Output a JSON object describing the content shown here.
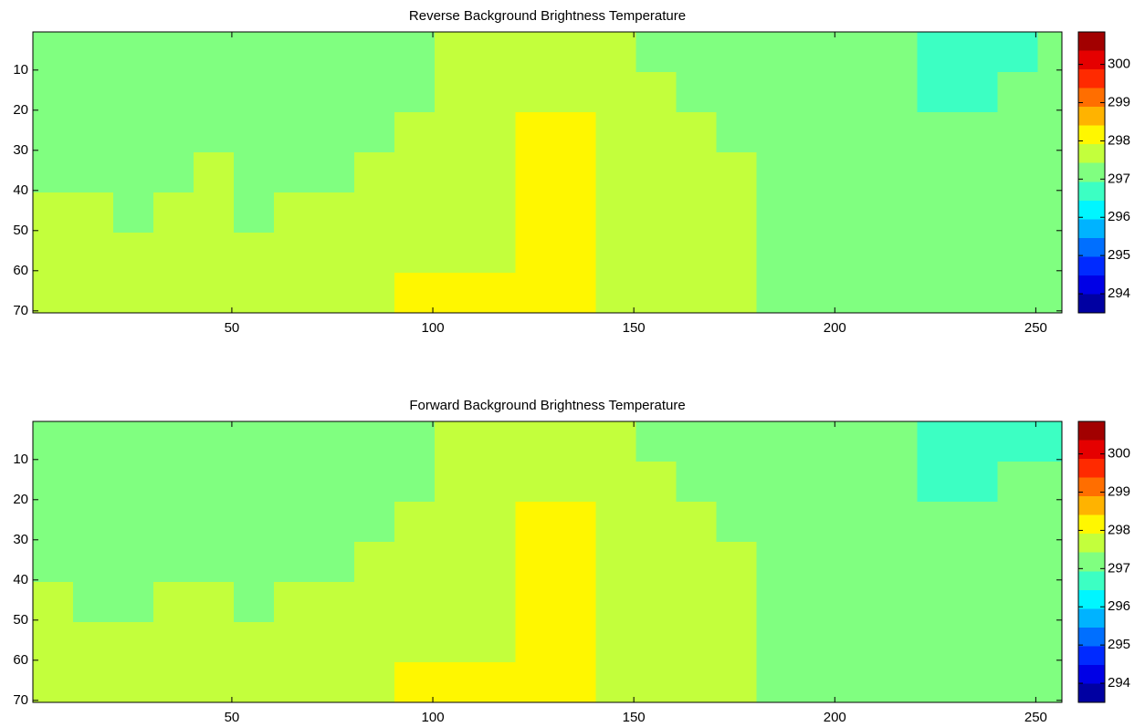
{
  "chart_data": [
    {
      "type": "heatmap",
      "title": "Reverse Background Brightness Temperature",
      "colormap": "jet",
      "levels": 15,
      "clim": [
        293.5,
        300.85
      ],
      "cticks": [
        294,
        295,
        296,
        297,
        298,
        299,
        300
      ],
      "xlim": [
        0.5,
        256.5
      ],
      "ylim": [
        0.5,
        70.5
      ],
      "xticks": [
        50,
        100,
        150,
        200,
        250
      ],
      "yticks": [
        10,
        20,
        30,
        40,
        50,
        60,
        70
      ],
      "x_edges": [
        0.5,
        10.5,
        20.5,
        30.5,
        40.5,
        50.5,
        60.5,
        70.5,
        80.5,
        90.5,
        100.5,
        110.5,
        120.5,
        130.5,
        140.5,
        150.5,
        160.5,
        170.5,
        180.5,
        190.5,
        200.5,
        210.5,
        220.5,
        230.5,
        240.5,
        250.5,
        256.5
      ],
      "y_edges": [
        0.5,
        10.5,
        20.5,
        30.5,
        40.5,
        50.5,
        60.5,
        70.5
      ],
      "z": [
        [
          297,
          297,
          297,
          297,
          297,
          297,
          297,
          297,
          297,
          297,
          297.6,
          297.6,
          297.6,
          297.6,
          297.6,
          297,
          297,
          297,
          297,
          297,
          297,
          297,
          296.5,
          296.5,
          296.5,
          297
        ],
        [
          297,
          297,
          297,
          297,
          297,
          297,
          297,
          297,
          297,
          297,
          297.6,
          297.6,
          297.6,
          297.6,
          297.6,
          297.6,
          297,
          297,
          297,
          297,
          297,
          297,
          296.5,
          296.5,
          297,
          297
        ],
        [
          297,
          297,
          297,
          297,
          297,
          297,
          297,
          297,
          297,
          297.6,
          297.6,
          297.6,
          298,
          298,
          297.6,
          297.6,
          297.6,
          297,
          297,
          297,
          297,
          297,
          297,
          297,
          297,
          297
        ],
        [
          297,
          297,
          297,
          297,
          297.6,
          297,
          297,
          297,
          297.6,
          297.6,
          297.6,
          297.6,
          298,
          298,
          297.6,
          297.6,
          297.6,
          297.6,
          297,
          297,
          297,
          297,
          297,
          297,
          297,
          297
        ],
        [
          297.6,
          297.6,
          297,
          297.6,
          297.6,
          297,
          297.6,
          297.6,
          297.6,
          297.6,
          297.6,
          297.6,
          298,
          298,
          297.6,
          297.6,
          297.6,
          297.6,
          297,
          297,
          297,
          297,
          297,
          297,
          297,
          297
        ],
        [
          297.6,
          297.6,
          297.6,
          297.6,
          297.6,
          297.6,
          297.6,
          297.6,
          297.6,
          297.6,
          297.6,
          297.6,
          298,
          298,
          297.6,
          297.6,
          297.6,
          297.6,
          297,
          297,
          297,
          297,
          297,
          297,
          297,
          297
        ],
        [
          297.6,
          297.6,
          297.6,
          297.6,
          297.6,
          297.6,
          297.6,
          297.6,
          297.6,
          298,
          298,
          298,
          298,
          298,
          297.6,
          297.6,
          297.6,
          297.6,
          297,
          297,
          297,
          297,
          297,
          297,
          297,
          297
        ]
      ]
    },
    {
      "type": "heatmap",
      "title": "Forward Background Brightness Temperature",
      "colormap": "jet",
      "levels": 15,
      "clim": [
        293.5,
        300.85
      ],
      "cticks": [
        294,
        295,
        296,
        297,
        298,
        299,
        300
      ],
      "xlim": [
        0.5,
        256.5
      ],
      "ylim": [
        0.5,
        70.5
      ],
      "xticks": [
        50,
        100,
        150,
        200,
        250
      ],
      "yticks": [
        10,
        20,
        30,
        40,
        50,
        60,
        70
      ],
      "x_edges": [
        0.5,
        10.5,
        20.5,
        30.5,
        40.5,
        50.5,
        60.5,
        70.5,
        80.5,
        90.5,
        100.5,
        110.5,
        120.5,
        130.5,
        140.5,
        150.5,
        160.5,
        170.5,
        180.5,
        190.5,
        200.5,
        210.5,
        220.5,
        230.5,
        240.5,
        250.5,
        256.5
      ],
      "y_edges": [
        0.5,
        10.5,
        20.5,
        30.5,
        40.5,
        50.5,
        60.5,
        70.5
      ],
      "z": [
        [
          297,
          297,
          297,
          297,
          297,
          297,
          297,
          297,
          297,
          297,
          297.6,
          297.6,
          297.6,
          297.6,
          297.6,
          297,
          297,
          297,
          297,
          297,
          297,
          297,
          296.5,
          296.5,
          296.5,
          296.5
        ],
        [
          297,
          297,
          297,
          297,
          297,
          297,
          297,
          297,
          297,
          297,
          297.6,
          297.6,
          297.6,
          297.6,
          297.6,
          297.6,
          297,
          297,
          297,
          297,
          297,
          297,
          296.5,
          296.5,
          297,
          297
        ],
        [
          297,
          297,
          297,
          297,
          297,
          297,
          297,
          297,
          297,
          297.6,
          297.6,
          297.6,
          298,
          298,
          297.6,
          297.6,
          297.6,
          297,
          297,
          297,
          297,
          297,
          297,
          297,
          297,
          297
        ],
        [
          297,
          297,
          297,
          297,
          297,
          297,
          297,
          297,
          297.6,
          297.6,
          297.6,
          297.6,
          298,
          298,
          297.6,
          297.6,
          297.6,
          297.6,
          297,
          297,
          297,
          297,
          297,
          297,
          297,
          297
        ],
        [
          297.6,
          297,
          297,
          297.6,
          297.6,
          297,
          297.6,
          297.6,
          297.6,
          297.6,
          297.6,
          297.6,
          298,
          298,
          297.6,
          297.6,
          297.6,
          297.6,
          297,
          297,
          297,
          297,
          297,
          297,
          297,
          297
        ],
        [
          297.6,
          297.6,
          297.6,
          297.6,
          297.6,
          297.6,
          297.6,
          297.6,
          297.6,
          297.6,
          297.6,
          297.6,
          298,
          298,
          297.6,
          297.6,
          297.6,
          297.6,
          297,
          297,
          297,
          297,
          297,
          297,
          297,
          297
        ],
        [
          297.6,
          297.6,
          297.6,
          297.6,
          297.6,
          297.6,
          297.6,
          297.6,
          297.6,
          298,
          298,
          298,
          298,
          298,
          297.6,
          297.6,
          297.6,
          297.6,
          297,
          297,
          297,
          297,
          297,
          297,
          297,
          297
        ]
      ]
    }
  ]
}
